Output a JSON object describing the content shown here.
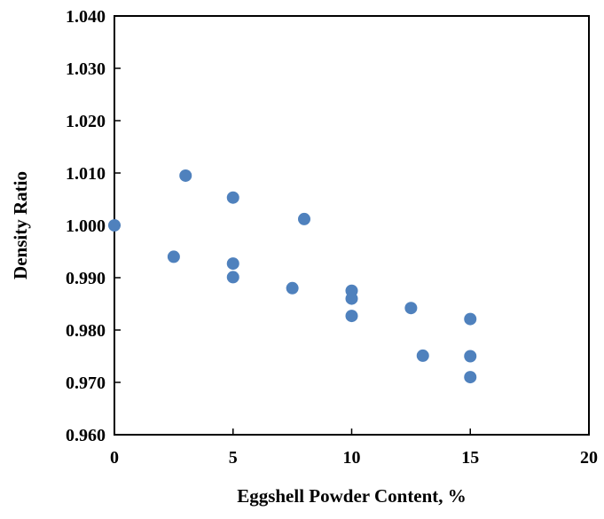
{
  "chart_data": {
    "type": "scatter",
    "title": "",
    "xlabel": "Eggshell Powder Content, %",
    "ylabel": "Density Ratio",
    "xlim": [
      0,
      20
    ],
    "ylim": [
      0.96,
      1.04
    ],
    "x_ticks": [
      0,
      5,
      10,
      15,
      20
    ],
    "x_tick_labels": [
      "0",
      "5",
      "10",
      "15",
      "20"
    ],
    "y_ticks": [
      0.96,
      0.97,
      0.98,
      0.99,
      1.0,
      1.01,
      1.02,
      1.03,
      1.04
    ],
    "y_tick_labels": [
      "0.960",
      "0.970",
      "0.980",
      "0.990",
      "1.000",
      "1.010",
      "1.020",
      "1.030",
      "1.040"
    ],
    "grid": false,
    "legend": "none",
    "marker_color": "#4f81bd",
    "points": [
      {
        "x": 0,
        "y": 1.0
      },
      {
        "x": 2.5,
        "y": 0.994
      },
      {
        "x": 3,
        "y": 1.0095
      },
      {
        "x": 5,
        "y": 1.0053
      },
      {
        "x": 5,
        "y": 0.9927
      },
      {
        "x": 5,
        "y": 0.9901
      },
      {
        "x": 7.5,
        "y": 0.988
      },
      {
        "x": 8,
        "y": 1.0012
      },
      {
        "x": 10,
        "y": 0.9875
      },
      {
        "x": 10,
        "y": 0.986
      },
      {
        "x": 10,
        "y": 0.9827
      },
      {
        "x": 12.5,
        "y": 0.9842
      },
      {
        "x": 13,
        "y": 0.9751
      },
      {
        "x": 15,
        "y": 0.9821
      },
      {
        "x": 15,
        "y": 0.975
      },
      {
        "x": 15,
        "y": 0.971
      }
    ]
  }
}
